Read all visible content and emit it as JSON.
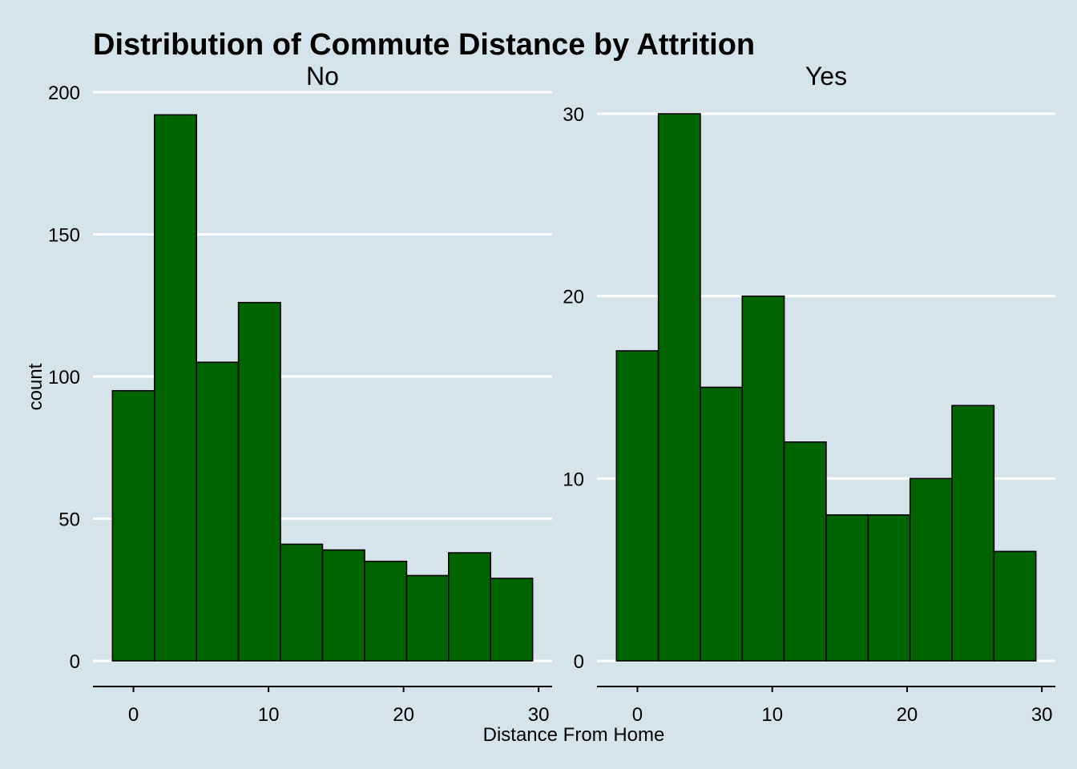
{
  "chart_data": {
    "type": "bar",
    "title": "Distribution of Commute Distance by Attrition",
    "xlabel": "Distance From Home",
    "ylabel": "count",
    "bar_fill": "#006400",
    "bar_outline": "#000000",
    "background": "#d5e4eb",
    "gridline_color": "#ffffff",
    "grid": "horizontal major only",
    "bin_width": 3.11,
    "bin_centers": [
      0,
      3.11,
      6.22,
      9.33,
      12.44,
      15.56,
      18.67,
      21.78,
      24.89,
      28.0
    ],
    "xlim": [
      -3,
      31
    ],
    "x_ticks": [
      "0",
      "10",
      "20",
      "30"
    ],
    "x_tick_values": [
      0,
      10,
      20,
      30
    ],
    "panels": [
      {
        "name": "No",
        "values": [
          95,
          192,
          105,
          126,
          41,
          39,
          35,
          30,
          38,
          29
        ],
        "ylim": [
          0,
          200
        ],
        "y_ticks": [
          "0",
          "50",
          "100",
          "150",
          "200"
        ],
        "y_tick_values": [
          0,
          50,
          100,
          150,
          200
        ]
      },
      {
        "name": "Yes",
        "values": [
          17,
          30,
          15,
          20,
          12,
          8,
          8,
          10,
          14,
          6
        ],
        "ylim": [
          0,
          30
        ],
        "y_ticks": [
          "0",
          "10",
          "20",
          "30"
        ],
        "y_tick_values": [
          0,
          10,
          20,
          30
        ]
      }
    ]
  }
}
